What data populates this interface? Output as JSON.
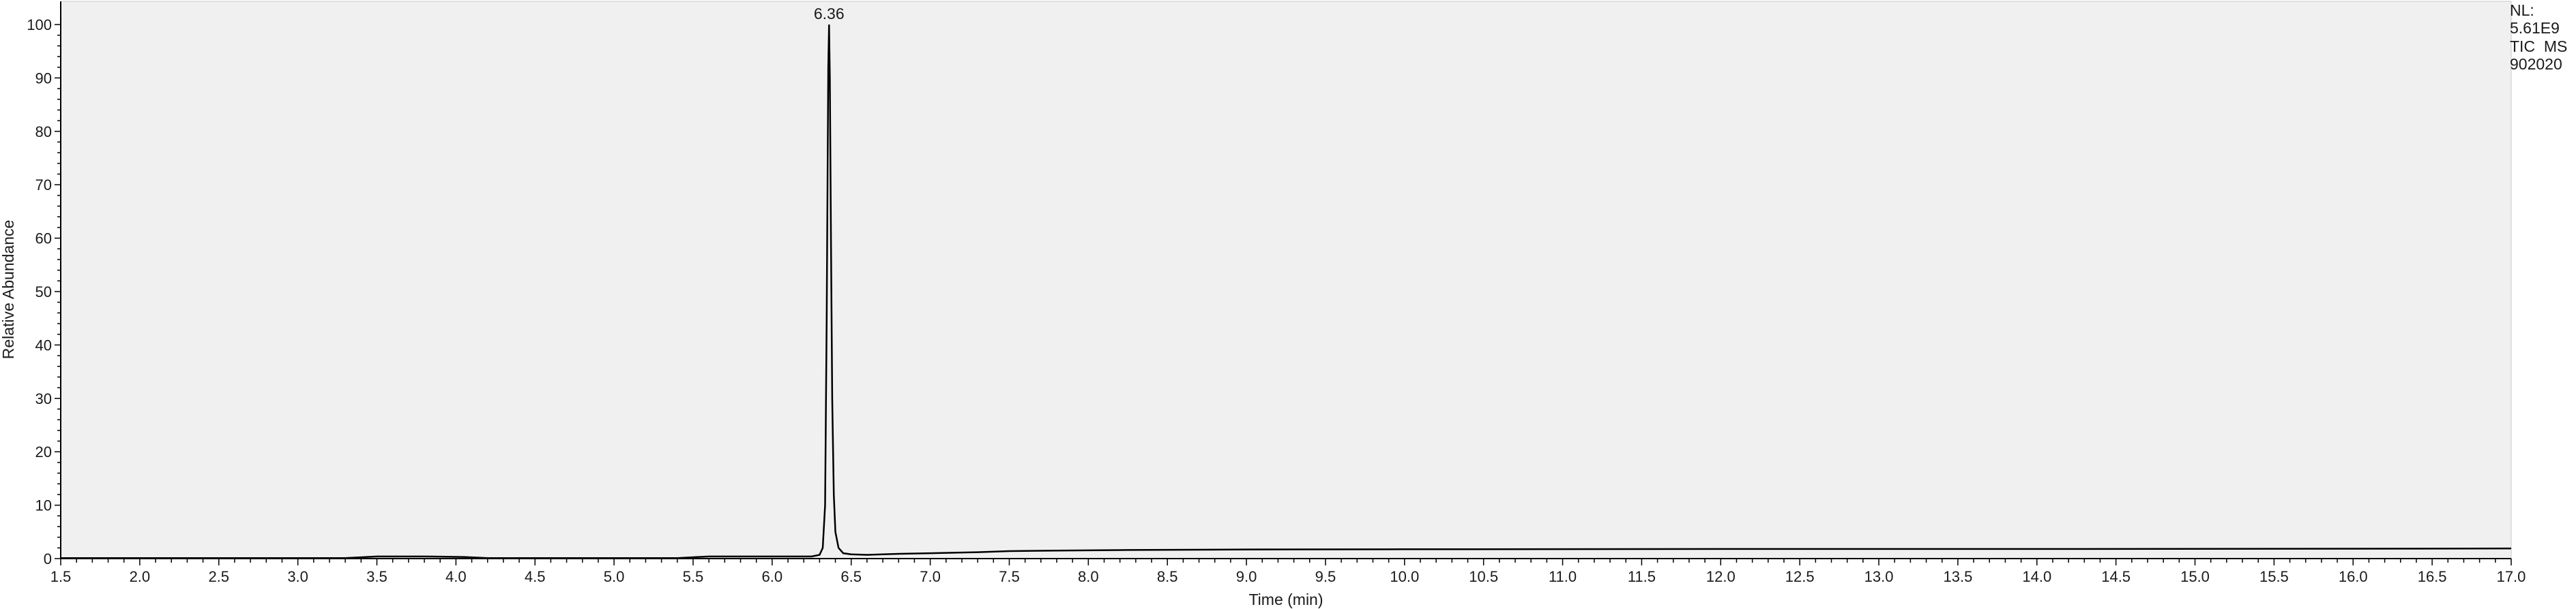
{
  "info": {
    "nl_label": "NL:",
    "nl_value": "5.61E9",
    "scan_filter": "TIC  MS",
    "sample": "902020"
  },
  "colors": {
    "plot_background": "#f0f0f0",
    "trace": "#000000",
    "axes": "#000000",
    "page": "#ffffff"
  },
  "chart_data": {
    "type": "line",
    "title": "",
    "xlabel": "Time (min)",
    "ylabel": "Relative Abundance",
    "xlim": [
      1.5,
      17.0
    ],
    "ylim": [
      0,
      100
    ],
    "x_major_step": 0.5,
    "x_tick_labels": [
      "1.5",
      "2.0",
      "2.5",
      "3.0",
      "3.5",
      "4.0",
      "4.5",
      "5.0",
      "5.5",
      "6.0",
      "6.5",
      "7.0",
      "7.5",
      "8.0",
      "8.5",
      "9.0",
      "9.5",
      "10.0",
      "10.5",
      "11.0",
      "11.5",
      "12.0",
      "12.5",
      "13.0",
      "13.5",
      "14.0",
      "14.5",
      "15.0",
      "15.5",
      "16.0",
      "16.5",
      "17.0"
    ],
    "y_tick_labels": [
      "0",
      "10",
      "20",
      "30",
      "40",
      "50",
      "60",
      "70",
      "80",
      "90",
      "100"
    ],
    "grid": false,
    "annotations": [
      {
        "x": 6.36,
        "y": 100,
        "text": "6.36"
      }
    ],
    "series": [
      {
        "x": [
          1.5,
          3.3,
          3.5,
          3.8,
          4.05,
          4.2,
          5.4,
          5.6,
          6.0,
          6.25,
          6.3,
          6.32,
          6.335,
          6.345,
          6.355,
          6.36,
          6.365,
          6.372,
          6.38,
          6.39,
          6.4,
          6.42,
          6.45,
          6.5,
          6.6,
          6.8,
          7.0,
          7.3,
          7.5,
          7.8,
          8.2,
          9.0,
          10.0,
          12.0,
          14.0,
          16.0,
          17.0
        ],
        "y": [
          0.1,
          0.1,
          0.4,
          0.4,
          0.3,
          0.1,
          0.1,
          0.4,
          0.4,
          0.4,
          0.7,
          2.0,
          10.0,
          45.0,
          92.0,
          100.0,
          90.0,
          60.0,
          30.0,
          12.0,
          5.0,
          2.0,
          1.0,
          0.8,
          0.7,
          0.9,
          1.0,
          1.2,
          1.4,
          1.5,
          1.6,
          1.7,
          1.75,
          1.8,
          1.8,
          1.85,
          1.9
        ]
      }
    ]
  }
}
